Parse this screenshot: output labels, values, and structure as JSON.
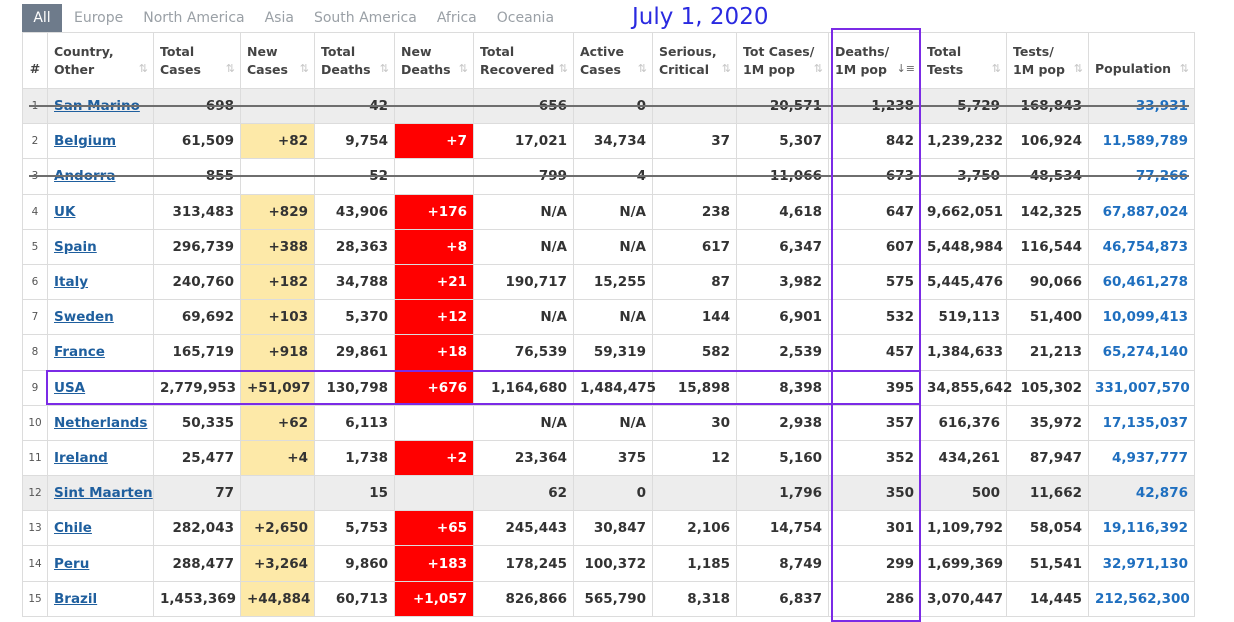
{
  "tabs": [
    {
      "label": "All",
      "active": true
    },
    {
      "label": "Europe",
      "active": false
    },
    {
      "label": "North America",
      "active": false
    },
    {
      "label": "Asia",
      "active": false
    },
    {
      "label": "South America",
      "active": false
    },
    {
      "label": "Africa",
      "active": false
    },
    {
      "label": "Oceania",
      "active": false
    }
  ],
  "annotation": {
    "date": "July 1, 2020",
    "color": "#2a2ae0"
  },
  "colors": {
    "highlight": "#7b2be6",
    "new_cases_bg": "#fde9a8",
    "new_deaths_bg": "#ff0000",
    "link": "#1f5f9e"
  },
  "headers": [
    {
      "line1": "#",
      "line2": ""
    },
    {
      "line1": "Country,",
      "line2": "Other"
    },
    {
      "line1": "Total",
      "line2": "Cases"
    },
    {
      "line1": "New",
      "line2": "Cases"
    },
    {
      "line1": "Total",
      "line2": "Deaths"
    },
    {
      "line1": "New",
      "line2": "Deaths"
    },
    {
      "line1": "Total",
      "line2": "Recovered"
    },
    {
      "line1": "Active",
      "line2": "Cases"
    },
    {
      "line1": "Serious,",
      "line2": "Critical"
    },
    {
      "line1": "Tot Cases/",
      "line2": "1M pop"
    },
    {
      "line1": "Deaths/",
      "line2": "1M pop"
    },
    {
      "line1": "Total",
      "line2": "Tests"
    },
    {
      "line1": "Tests/",
      "line2": "1M pop"
    },
    {
      "line1": "Population",
      "line2": ""
    }
  ],
  "sort_column": "Deaths/ 1M pop",
  "rows": [
    {
      "n": "1",
      "country": "San Marino",
      "total_cases": "698",
      "new_cases": "",
      "total_deaths": "42",
      "new_deaths": "",
      "total_recovered": "656",
      "active": "0",
      "serious": "",
      "cases_1m": "20,571",
      "deaths_1m": "1,238",
      "total_tests": "5,729",
      "tests_1m": "168,843",
      "population": "33,931",
      "struck": true,
      "gray": true
    },
    {
      "n": "2",
      "country": "Belgium",
      "total_cases": "61,509",
      "new_cases": "+82",
      "total_deaths": "9,754",
      "new_deaths": "+7",
      "total_recovered": "17,021",
      "active": "34,734",
      "serious": "37",
      "cases_1m": "5,307",
      "deaths_1m": "842",
      "total_tests": "1,239,232",
      "tests_1m": "106,924",
      "population": "11,589,789",
      "struck": false,
      "gray": false
    },
    {
      "n": "3",
      "country": "Andorra",
      "total_cases": "855",
      "new_cases": "",
      "total_deaths": "52",
      "new_deaths": "",
      "total_recovered": "799",
      "active": "4",
      "serious": "",
      "cases_1m": "11,066",
      "deaths_1m": "673",
      "total_tests": "3,750",
      "tests_1m": "48,534",
      "population": "77,266",
      "struck": true,
      "gray": false
    },
    {
      "n": "4",
      "country": "UK",
      "total_cases": "313,483",
      "new_cases": "+829",
      "total_deaths": "43,906",
      "new_deaths": "+176",
      "total_recovered": "N/A",
      "active": "N/A",
      "serious": "238",
      "cases_1m": "4,618",
      "deaths_1m": "647",
      "total_tests": "9,662,051",
      "tests_1m": "142,325",
      "population": "67,887,024",
      "struck": false,
      "gray": false
    },
    {
      "n": "5",
      "country": "Spain",
      "total_cases": "296,739",
      "new_cases": "+388",
      "total_deaths": "28,363",
      "new_deaths": "+8",
      "total_recovered": "N/A",
      "active": "N/A",
      "serious": "617",
      "cases_1m": "6,347",
      "deaths_1m": "607",
      "total_tests": "5,448,984",
      "tests_1m": "116,544",
      "population": "46,754,873",
      "struck": false,
      "gray": false
    },
    {
      "n": "6",
      "country": "Italy",
      "total_cases": "240,760",
      "new_cases": "+182",
      "total_deaths": "34,788",
      "new_deaths": "+21",
      "total_recovered": "190,717",
      "active": "15,255",
      "serious": "87",
      "cases_1m": "3,982",
      "deaths_1m": "575",
      "total_tests": "5,445,476",
      "tests_1m": "90,066",
      "population": "60,461,278",
      "struck": false,
      "gray": false
    },
    {
      "n": "7",
      "country": "Sweden",
      "total_cases": "69,692",
      "new_cases": "+103",
      "total_deaths": "5,370",
      "new_deaths": "+12",
      "total_recovered": "N/A",
      "active": "N/A",
      "serious": "144",
      "cases_1m": "6,901",
      "deaths_1m": "532",
      "total_tests": "519,113",
      "tests_1m": "51,400",
      "population": "10,099,413",
      "struck": false,
      "gray": false
    },
    {
      "n": "8",
      "country": "France",
      "total_cases": "165,719",
      "new_cases": "+918",
      "total_deaths": "29,861",
      "new_deaths": "+18",
      "total_recovered": "76,539",
      "active": "59,319",
      "serious": "582",
      "cases_1m": "2,539",
      "deaths_1m": "457",
      "total_tests": "1,384,633",
      "tests_1m": "21,213",
      "population": "65,274,140",
      "struck": false,
      "gray": false
    },
    {
      "n": "9",
      "country": "USA",
      "total_cases": "2,779,953",
      "new_cases": "+51,097",
      "total_deaths": "130,798",
      "new_deaths": "+676",
      "total_recovered": "1,164,680",
      "active": "1,484,475",
      "serious": "15,898",
      "cases_1m": "8,398",
      "deaths_1m": "395",
      "total_tests": "34,855,642",
      "tests_1m": "105,302",
      "population": "331,007,570",
      "struck": false,
      "gray": false
    },
    {
      "n": "10",
      "country": "Netherlands",
      "total_cases": "50,335",
      "new_cases": "+62",
      "total_deaths": "6,113",
      "new_deaths": "",
      "total_recovered": "N/A",
      "active": "N/A",
      "serious": "30",
      "cases_1m": "2,938",
      "deaths_1m": "357",
      "total_tests": "616,376",
      "tests_1m": "35,972",
      "population": "17,135,037",
      "struck": false,
      "gray": false
    },
    {
      "n": "11",
      "country": "Ireland",
      "total_cases": "25,477",
      "new_cases": "+4",
      "total_deaths": "1,738",
      "new_deaths": "+2",
      "total_recovered": "23,364",
      "active": "375",
      "serious": "12",
      "cases_1m": "5,160",
      "deaths_1m": "352",
      "total_tests": "434,261",
      "tests_1m": "87,947",
      "population": "4,937,777",
      "struck": false,
      "gray": false
    },
    {
      "n": "12",
      "country": "Sint Maarten",
      "total_cases": "77",
      "new_cases": "",
      "total_deaths": "15",
      "new_deaths": "",
      "total_recovered": "62",
      "active": "0",
      "serious": "",
      "cases_1m": "1,796",
      "deaths_1m": "350",
      "total_tests": "500",
      "tests_1m": "11,662",
      "population": "42,876",
      "struck": false,
      "gray": true
    },
    {
      "n": "13",
      "country": "Chile",
      "total_cases": "282,043",
      "new_cases": "+2,650",
      "total_deaths": "5,753",
      "new_deaths": "+65",
      "total_recovered": "245,443",
      "active": "30,847",
      "serious": "2,106",
      "cases_1m": "14,754",
      "deaths_1m": "301",
      "total_tests": "1,109,792",
      "tests_1m": "58,054",
      "population": "19,116,392",
      "struck": false,
      "gray": false
    },
    {
      "n": "14",
      "country": "Peru",
      "total_cases": "288,477",
      "new_cases": "+3,264",
      "total_deaths": "9,860",
      "new_deaths": "+183",
      "total_recovered": "178,245",
      "active": "100,372",
      "serious": "1,185",
      "cases_1m": "8,749",
      "deaths_1m": "299",
      "total_tests": "1,699,369",
      "tests_1m": "51,541",
      "population": "32,971,130",
      "struck": false,
      "gray": false
    },
    {
      "n": "15",
      "country": "Brazil",
      "total_cases": "1,453,369",
      "new_cases": "+44,884",
      "total_deaths": "60,713",
      "new_deaths": "+1,057",
      "total_recovered": "826,866",
      "active": "565,790",
      "serious": "8,318",
      "cases_1m": "6,837",
      "deaths_1m": "286",
      "total_tests": "3,070,447",
      "tests_1m": "14,445",
      "population": "212,562,300",
      "struck": false,
      "gray": false
    }
  ]
}
